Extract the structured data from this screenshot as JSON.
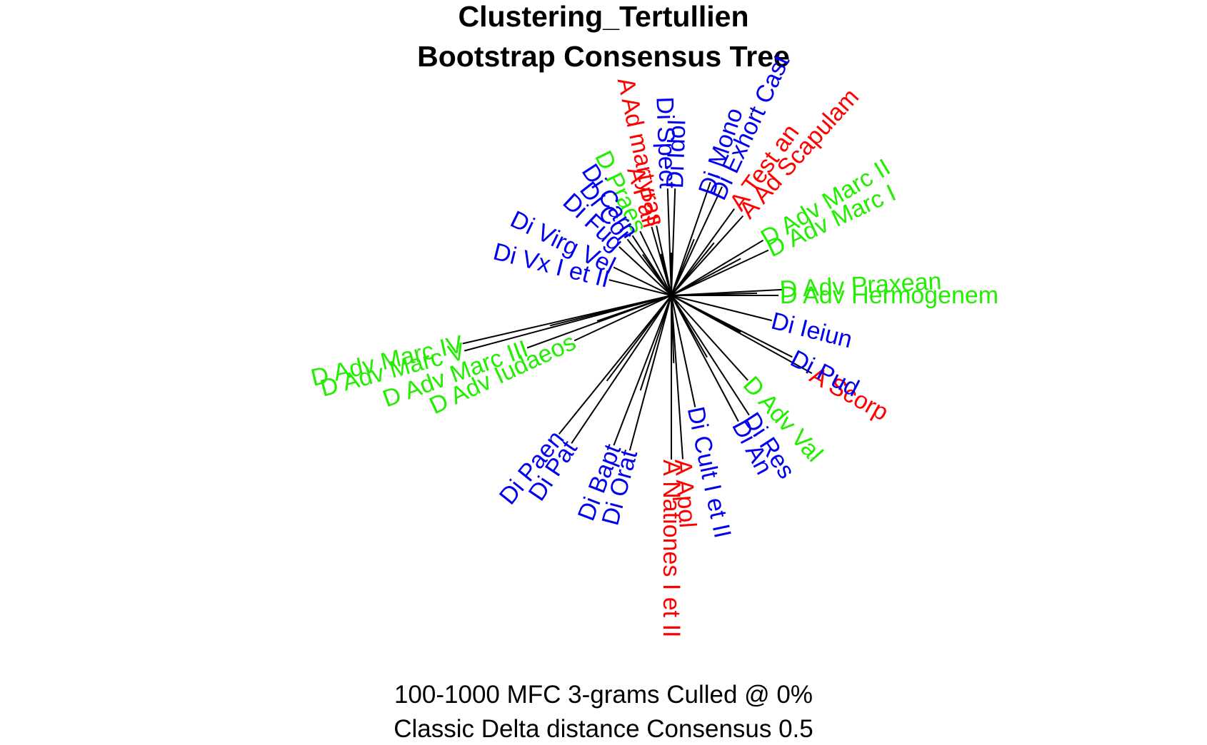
{
  "title": {
    "line1": "Clustering_Tertullien",
    "line2": "Bootstrap Consensus Tree"
  },
  "caption": {
    "line1": "100-1000 MFC 3-grams Culled @ 0%",
    "line2": "Classic Delta distance Consensus 0.5"
  },
  "colors": {
    "A": "#ff0000",
    "D": "#22ee00",
    "Di": "#0000ee"
  },
  "leaves": [
    {
      "label": "D Adv Hermogenem",
      "group": "D"
    },
    {
      "label": "D Adv Praxean",
      "group": "D"
    },
    {
      "label": "D Adv Marc I",
      "group": "D"
    },
    {
      "label": "D Adv Marc II",
      "group": "D"
    },
    {
      "label": "A Ad Scapulam",
      "group": "A"
    },
    {
      "label": "A Test an",
      "group": "A"
    },
    {
      "label": "Di Exhort Cast",
      "group": "Di"
    },
    {
      "label": "Di Mono",
      "group": "Di"
    },
    {
      "label": "Di Idol",
      "group": "Di"
    },
    {
      "label": "Di Spect",
      "group": "Di"
    },
    {
      "label": "A Ad martyras",
      "group": "A"
    },
    {
      "label": "A Pall",
      "group": "A"
    },
    {
      "label": "D Praes",
      "group": "D"
    },
    {
      "label": "Di Carn",
      "group": "Di"
    },
    {
      "label": "Di Cor",
      "group": "Di"
    },
    {
      "label": "Di Fug",
      "group": "Di"
    },
    {
      "label": "Di Virg Vel",
      "group": "Di"
    },
    {
      "label": "Di Vx I et II",
      "group": "Di"
    },
    {
      "label": "D Adv Marc IV",
      "group": "D"
    },
    {
      "label": "D Adv Marc V",
      "group": "D"
    },
    {
      "label": "D Adv Marc III",
      "group": "D"
    },
    {
      "label": "D Adv Iudaeos",
      "group": "D"
    },
    {
      "label": "Di Paen",
      "group": "Di"
    },
    {
      "label": "Di Pat",
      "group": "Di"
    },
    {
      "label": "Di Bapt",
      "group": "Di"
    },
    {
      "label": "Di Orat",
      "group": "Di"
    },
    {
      "label": "A Nationes I et II",
      "group": "A"
    },
    {
      "label": "A Apol",
      "group": "A"
    },
    {
      "label": "Di Cult I et II",
      "group": "Di"
    },
    {
      "label": "Di An",
      "group": "Di"
    },
    {
      "label": "Di Res",
      "group": "Di"
    },
    {
      "label": "D Adv Val",
      "group": "D"
    },
    {
      "label": "A Scorp",
      "group": "A"
    },
    {
      "label": "Di Pud",
      "group": "Di"
    },
    {
      "label": "Di Ieiun",
      "group": "Di"
    }
  ]
}
